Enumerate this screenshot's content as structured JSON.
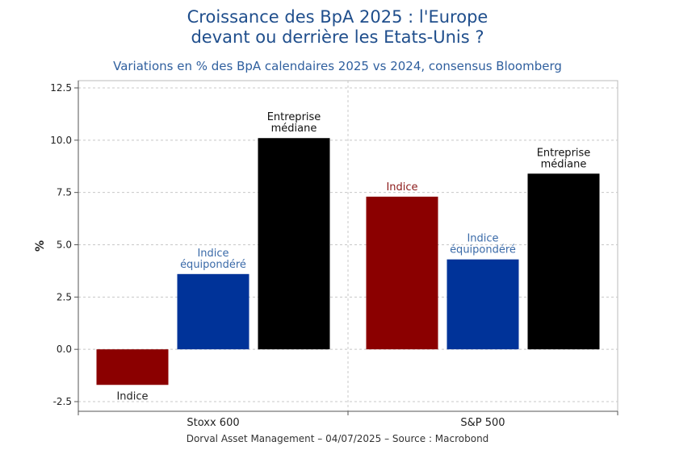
{
  "title_line1": "Croissance des BpA 2025 : l'Europe",
  "title_line2": "devant ou derrière les Etats-Unis ?",
  "subtitle": "Variations en % des BpA calendaires 2025 vs 2024, consensus Bloomberg",
  "footer": "Dorval Asset Management – 04/07/2025  –   Source : Macrobond",
  "chart_data": {
    "type": "bar",
    "ylabel": "%",
    "ylim": [
      -2.5,
      12.5
    ],
    "yticks": [
      "-2.5",
      "0.0",
      "2.5",
      "5.0",
      "7.5",
      "10.0",
      "12.5"
    ],
    "grid": true,
    "categories": [
      "Stoxx 600",
      "S&P 500"
    ],
    "groups": [
      {
        "category": "Stoxx 600",
        "bars": [
          {
            "label_lines": [
              "Indice"
            ],
            "value": -1.7,
            "color": "#8b0000",
            "label_color": "#222222"
          },
          {
            "label_lines": [
              "Indice",
              "équipondéré"
            ],
            "value": 3.6,
            "color": "#003399",
            "label_color": "#3a6aa8"
          },
          {
            "label_lines": [
              "Entreprise",
              "médiane"
            ],
            "value": 10.1,
            "color": "#000000",
            "label_color": "#111111"
          }
        ]
      },
      {
        "category": "S&P 500",
        "bars": [
          {
            "label_lines": [
              "Indice"
            ],
            "value": 7.3,
            "color": "#8b0000",
            "label_color": "#8b1a1a"
          },
          {
            "label_lines": [
              "Indice",
              "équipondéré"
            ],
            "value": 4.3,
            "color": "#003399",
            "label_color": "#3a6aa8"
          },
          {
            "label_lines": [
              "Entreprise",
              "médiane"
            ],
            "value": 8.4,
            "color": "#000000",
            "label_color": "#111111"
          }
        ]
      }
    ]
  }
}
